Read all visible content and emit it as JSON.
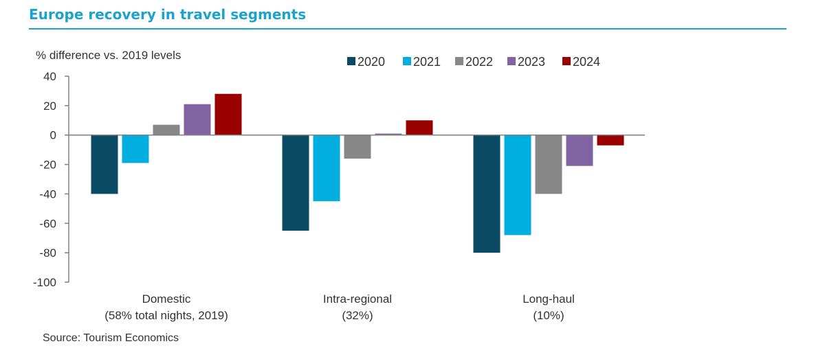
{
  "page": {
    "title": "Europe recovery in travel segments",
    "source": "Source: Tourism Economics"
  },
  "colors": {
    "title": "#1aa3cc",
    "axis": "#808080",
    "text": "#333333"
  },
  "chart_data": {
    "type": "bar",
    "title": "Europe recovery in travel segments",
    "ylabel": "% difference vs. 2019 levels",
    "xlabel": "",
    "ylim": [
      -100,
      40
    ],
    "yticks": [
      40,
      20,
      0,
      -20,
      -40,
      -60,
      -80,
      -100
    ],
    "grid": false,
    "legend_position": "top-right",
    "categories": [
      [
        "Domestic",
        "(58% total nights, 2019)"
      ],
      [
        "Intra-regional",
        "(32%)"
      ],
      [
        "Long-haul",
        "(10%)"
      ]
    ],
    "series": [
      {
        "name": "2020",
        "color": "#0b4a63",
        "values": [
          -40,
          -65,
          -80
        ]
      },
      {
        "name": "2021",
        "color": "#00aee0",
        "values": [
          -19,
          -45,
          -68
        ]
      },
      {
        "name": "2022",
        "color": "#878787",
        "values": [
          7,
          -16,
          -40
        ]
      },
      {
        "name": "2023",
        "color": "#8064a2",
        "values": [
          21,
          1,
          -21
        ]
      },
      {
        "name": "2024",
        "color": "#990000",
        "values": [
          28,
          10,
          -7
        ]
      }
    ]
  }
}
